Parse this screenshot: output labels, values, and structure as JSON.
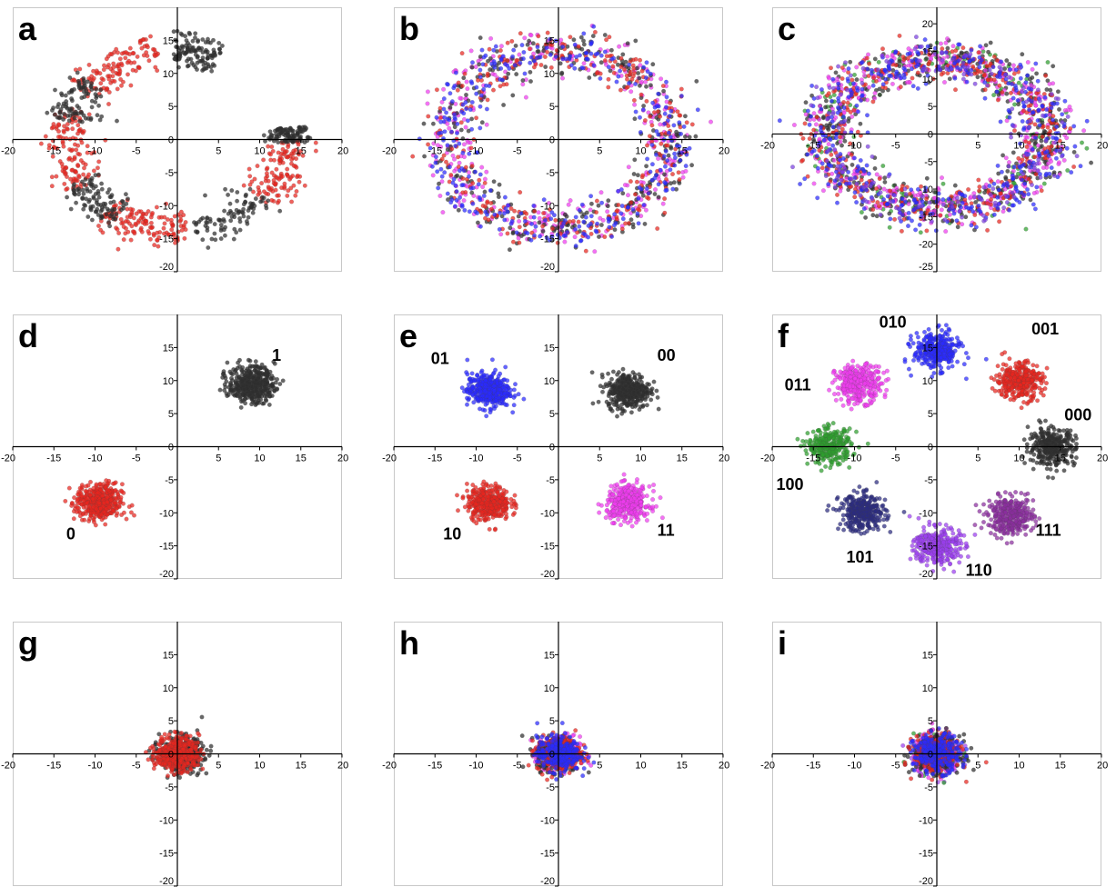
{
  "chart_data": [
    {
      "id": "a",
      "letter": "a",
      "type": "scatter",
      "ylim": [
        -20,
        20
      ],
      "xlim": [
        -20,
        20
      ],
      "yticks": [
        -20,
        -15,
        -10,
        -5,
        0,
        5,
        10,
        15
      ],
      "xticks": [
        -20,
        -15,
        -10,
        -5,
        0,
        5,
        10,
        15,
        20
      ],
      "series": [
        {
          "color": "#e8261f",
          "shape": "arc-segments",
          "radius": 13.5,
          "width": 1.4,
          "n": 520,
          "segments": [
            [
              100,
              150
            ],
            [
              160,
              212
            ],
            [
              232,
              275
            ],
            [
              318,
              360
            ]
          ]
        },
        {
          "color": "#2e2e2e",
          "shape": "arc-segments",
          "radius": 13.5,
          "width": 1.4,
          "n": 520,
          "segments": [
            [
              68,
              92
            ],
            [
              140,
              168
            ],
            [
              208,
              238
            ],
            [
              278,
              320
            ],
            [
              358,
              368
            ]
          ]
        }
      ],
      "labels": []
    },
    {
      "id": "b",
      "letter": "b",
      "type": "scatter",
      "ylim": [
        -20,
        20
      ],
      "xlim": [
        -20,
        20
      ],
      "yticks": [
        -20,
        -15,
        -10,
        -5,
        0,
        5,
        10,
        15
      ],
      "xticks": [
        -20,
        -15,
        -10,
        -5,
        0,
        5,
        10,
        15,
        20
      ],
      "series": [
        {
          "color": "#f03cf0",
          "shape": "ring",
          "radius": 13.5,
          "width": 1.6,
          "n": 330
        },
        {
          "color": "#2e2e2e",
          "shape": "ring",
          "radius": 13.5,
          "width": 1.6,
          "n": 300
        },
        {
          "color": "#e8261f",
          "shape": "ring",
          "radius": 13.5,
          "width": 1.6,
          "n": 300
        },
        {
          "color": "#2a2aff",
          "shape": "ring",
          "radius": 13.5,
          "width": 1.6,
          "n": 330
        }
      ],
      "labels": []
    },
    {
      "id": "c",
      "letter": "c",
      "type": "scatter",
      "ylim": [
        -25,
        23
      ],
      "xlim": [
        -20,
        20
      ],
      "yticks": [
        -25,
        -20,
        -15,
        -10,
        -5,
        0,
        5,
        10,
        15,
        20
      ],
      "xticks": [
        -20,
        -15,
        -10,
        -5,
        0,
        5,
        10,
        15,
        20
      ],
      "series": [
        {
          "color": "#2e9e2e",
          "shape": "ring",
          "radius": 13.5,
          "width": 1.8,
          "n": 150
        },
        {
          "color": "#2e2e2e",
          "shape": "ring",
          "radius": 13.5,
          "width": 1.8,
          "n": 380
        },
        {
          "color": "#f03cf0",
          "shape": "ring",
          "radius": 13.5,
          "width": 1.8,
          "n": 380
        },
        {
          "color": "#e8261f",
          "shape": "ring",
          "radius": 13.5,
          "width": 1.8,
          "n": 380
        },
        {
          "color": "#2a2aff",
          "shape": "ring",
          "radius": 13.5,
          "width": 1.8,
          "n": 420
        },
        {
          "color": "#7a3fe0",
          "shape": "ring",
          "radius": 13.5,
          "width": 1.8,
          "n": 160
        }
      ],
      "labels": []
    },
    {
      "id": "d",
      "letter": "d",
      "type": "scatter",
      "ylim": [
        -20,
        20
      ],
      "xlim": [
        -20,
        20
      ],
      "yticks": [
        -20,
        -15,
        -10,
        -5,
        0,
        5,
        10,
        15
      ],
      "xticks": [
        -20,
        -15,
        -10,
        -5,
        0,
        5,
        10,
        15,
        20
      ],
      "series": [
        {
          "color": "#2e2e2e",
          "shape": "blob",
          "cx": 9,
          "cy": 9.5,
          "sd": 1.4,
          "n": 420
        },
        {
          "color": "#e8261f",
          "shape": "blob",
          "cx": -9.5,
          "cy": -8.5,
          "sd": 1.4,
          "n": 420
        }
      ],
      "labels": [
        {
          "text": "1",
          "x": 11.5,
          "y": 13
        },
        {
          "text": "0",
          "x": -13.5,
          "y": -14
        }
      ]
    },
    {
      "id": "e",
      "letter": "e",
      "type": "scatter",
      "ylim": [
        -20,
        20
      ],
      "xlim": [
        -20,
        20
      ],
      "yticks": [
        -20,
        -15,
        -10,
        -5,
        0,
        5,
        10,
        15
      ],
      "xticks": [
        -20,
        -15,
        -10,
        -5,
        0,
        5,
        10,
        15,
        20
      ],
      "series": [
        {
          "color": "#2e2e2e",
          "shape": "blob",
          "cx": 8.5,
          "cy": 8.5,
          "sd": 1.3,
          "n": 380
        },
        {
          "color": "#2a2aff",
          "shape": "blob",
          "cx": -8.5,
          "cy": 8.5,
          "sd": 1.3,
          "n": 380
        },
        {
          "color": "#e8261f",
          "shape": "blob",
          "cx": -8.5,
          "cy": -8.5,
          "sd": 1.3,
          "n": 380
        },
        {
          "color": "#f03cf0",
          "shape": "blob",
          "cx": 8.5,
          "cy": -8.5,
          "sd": 1.3,
          "n": 380
        }
      ],
      "labels": [
        {
          "text": "00",
          "x": 12,
          "y": 13
        },
        {
          "text": "01",
          "x": -15.5,
          "y": 12.5
        },
        {
          "text": "10",
          "x": -14,
          "y": -14
        },
        {
          "text": "11",
          "x": 12,
          "y": -13.5
        }
      ]
    },
    {
      "id": "f",
      "letter": "f",
      "type": "scatter",
      "ylim": [
        -20,
        20
      ],
      "xlim": [
        -20,
        20
      ],
      "yticks": [
        -20,
        -15,
        -10,
        -5,
        0,
        5,
        10,
        15
      ],
      "xticks": [
        -20,
        -15,
        -10,
        -5,
        0,
        5,
        10,
        15,
        20
      ],
      "series": [
        {
          "color": "#2a2aff",
          "shape": "blob",
          "cx": 0,
          "cy": 14.5,
          "sd": 1.4,
          "n": 330
        },
        {
          "color": "#f03cf0",
          "shape": "blob",
          "cx": -9.5,
          "cy": 9.5,
          "sd": 1.4,
          "n": 330
        },
        {
          "color": "#e8261f",
          "shape": "blob",
          "cx": 10,
          "cy": 10,
          "sd": 1.4,
          "n": 330
        },
        {
          "color": "#2e2e2e",
          "shape": "blob",
          "cx": 14,
          "cy": 0,
          "sd": 1.4,
          "n": 330
        },
        {
          "color": "#2e9e2e",
          "shape": "blob",
          "cx": -13,
          "cy": 0,
          "sd": 1.3,
          "n": 300
        },
        {
          "color": "#2b2b80",
          "shape": "blob",
          "cx": -9,
          "cy": -10,
          "sd": 1.4,
          "n": 330
        },
        {
          "color": "#8a2e9e",
          "shape": "blob",
          "cx": 9,
          "cy": -10.5,
          "sd": 1.4,
          "n": 330
        },
        {
          "color": "#9b3ff0",
          "shape": "blob",
          "cx": 0,
          "cy": -15,
          "sd": 1.4,
          "n": 330
        }
      ],
      "labels": [
        {
          "text": "010",
          "x": -7,
          "y": 18
        },
        {
          "text": "001",
          "x": 11.5,
          "y": 17
        },
        {
          "text": "011",
          "x": -18.5,
          "y": 8.5
        },
        {
          "text": "000",
          "x": 15.5,
          "y": 4
        },
        {
          "text": "100",
          "x": -19.5,
          "y": -6.5
        },
        {
          "text": "101",
          "x": -11,
          "y": -17.5
        },
        {
          "text": "111",
          "x": 12,
          "y": -13.5
        },
        {
          "text": "110",
          "x": 3.5,
          "y": -19.5
        }
      ]
    },
    {
      "id": "g",
      "letter": "g",
      "type": "scatter",
      "ylim": [
        -20,
        20
      ],
      "xlim": [
        -20,
        20
      ],
      "yticks": [
        -20,
        -15,
        -10,
        -5,
        0,
        5,
        10,
        15
      ],
      "xticks": [
        -20,
        -15,
        -10,
        -5,
        0,
        5,
        10,
        15,
        20
      ],
      "series": [
        {
          "color": "#2e2e2e",
          "shape": "blob",
          "cx": 0.5,
          "cy": 0,
          "sd": 1.3,
          "n": 400
        },
        {
          "color": "#e8261f",
          "shape": "blob",
          "cx": 0,
          "cy": 0,
          "sd": 1.3,
          "n": 420
        }
      ],
      "labels": []
    },
    {
      "id": "h",
      "letter": "h",
      "type": "scatter",
      "ylim": [
        -20,
        20
      ],
      "xlim": [
        -20,
        20
      ],
      "yticks": [
        -20,
        -15,
        -10,
        -5,
        0,
        5,
        10,
        15
      ],
      "xticks": [
        -20,
        -15,
        -10,
        -5,
        0,
        5,
        10,
        15,
        20
      ],
      "series": [
        {
          "color": "#f03cf0",
          "shape": "blob",
          "cx": 0,
          "cy": 0,
          "sd": 1.3,
          "n": 260
        },
        {
          "color": "#2e2e2e",
          "shape": "blob",
          "cx": 0,
          "cy": 0,
          "sd": 1.3,
          "n": 260
        },
        {
          "color": "#e8261f",
          "shape": "blob",
          "cx": 0,
          "cy": 0,
          "sd": 1.3,
          "n": 260
        },
        {
          "color": "#2a2aff",
          "shape": "blob",
          "cx": 0,
          "cy": 0,
          "sd": 1.3,
          "n": 300
        }
      ],
      "labels": []
    },
    {
      "id": "i",
      "letter": "i",
      "type": "scatter",
      "ylim": [
        -20,
        20
      ],
      "xlim": [
        -20,
        20
      ],
      "yticks": [
        -20,
        -15,
        -10,
        -5,
        0,
        5,
        10,
        15
      ],
      "xticks": [
        -20,
        -15,
        -10,
        -5,
        0,
        5,
        10,
        15,
        20
      ],
      "series": [
        {
          "color": "#9b3ff0",
          "shape": "blob",
          "cx": 0,
          "cy": 0,
          "sd": 1.4,
          "n": 220
        },
        {
          "color": "#2e9e2e",
          "shape": "blob",
          "cx": 0,
          "cy": 0,
          "sd": 1.4,
          "n": 120
        },
        {
          "color": "#f03cf0",
          "shape": "blob",
          "cx": 0,
          "cy": 0,
          "sd": 1.4,
          "n": 220
        },
        {
          "color": "#2e2e2e",
          "shape": "blob",
          "cx": 0,
          "cy": 0,
          "sd": 1.4,
          "n": 220
        },
        {
          "color": "#e8261f",
          "shape": "blob",
          "cx": 0,
          "cy": 0,
          "sd": 1.4,
          "n": 220
        },
        {
          "color": "#2a2aff",
          "shape": "blob",
          "cx": 0,
          "cy": 0,
          "sd": 1.4,
          "n": 260
        }
      ],
      "labels": []
    }
  ]
}
